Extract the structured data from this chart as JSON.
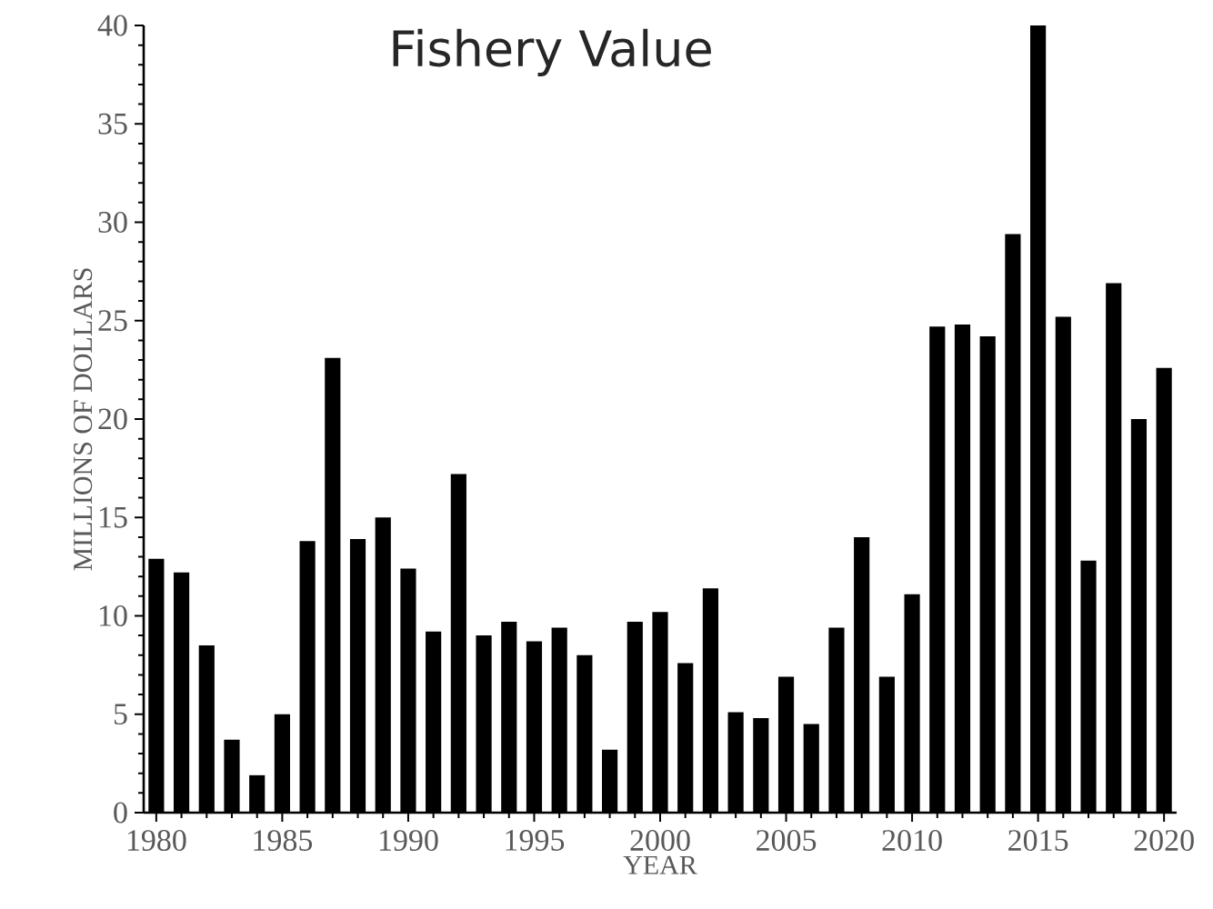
{
  "chart_data": {
    "type": "bar",
    "title": "Fishery Value",
    "xlabel": "YEAR",
    "ylabel": "MILLIONS OF DOLLARS",
    "x": [
      1980,
      1981,
      1982,
      1983,
      1984,
      1985,
      1986,
      1987,
      1988,
      1989,
      1990,
      1991,
      1992,
      1993,
      1994,
      1995,
      1996,
      1997,
      1998,
      1999,
      2000,
      2001,
      2002,
      2003,
      2004,
      2005,
      2006,
      2007,
      2008,
      2009,
      2010,
      2011,
      2012,
      2013,
      2014,
      2015,
      2016,
      2017,
      2018,
      2019,
      2020
    ],
    "values": [
      12.9,
      12.2,
      8.5,
      3.7,
      1.9,
      5.0,
      13.8,
      23.1,
      13.9,
      15.0,
      12.4,
      9.2,
      17.2,
      9.0,
      9.7,
      8.7,
      9.4,
      8.0,
      3.2,
      9.7,
      10.2,
      7.6,
      11.4,
      5.1,
      4.8,
      6.9,
      4.5,
      9.4,
      14.0,
      6.9,
      11.1,
      24.7,
      24.8,
      24.2,
      29.4,
      40.0,
      25.2,
      12.8,
      26.9,
      20.0,
      22.6
    ],
    "color": "#000000",
    "xlim": [
      1979.5,
      2020.5
    ],
    "xticks": [
      1980,
      1985,
      1990,
      1995,
      2000,
      2005,
      2010,
      2015,
      2020
    ],
    "ylim": [
      0,
      40
    ],
    "yticks": [
      0,
      5,
      10,
      15,
      20,
      25,
      30,
      35,
      40
    ]
  }
}
